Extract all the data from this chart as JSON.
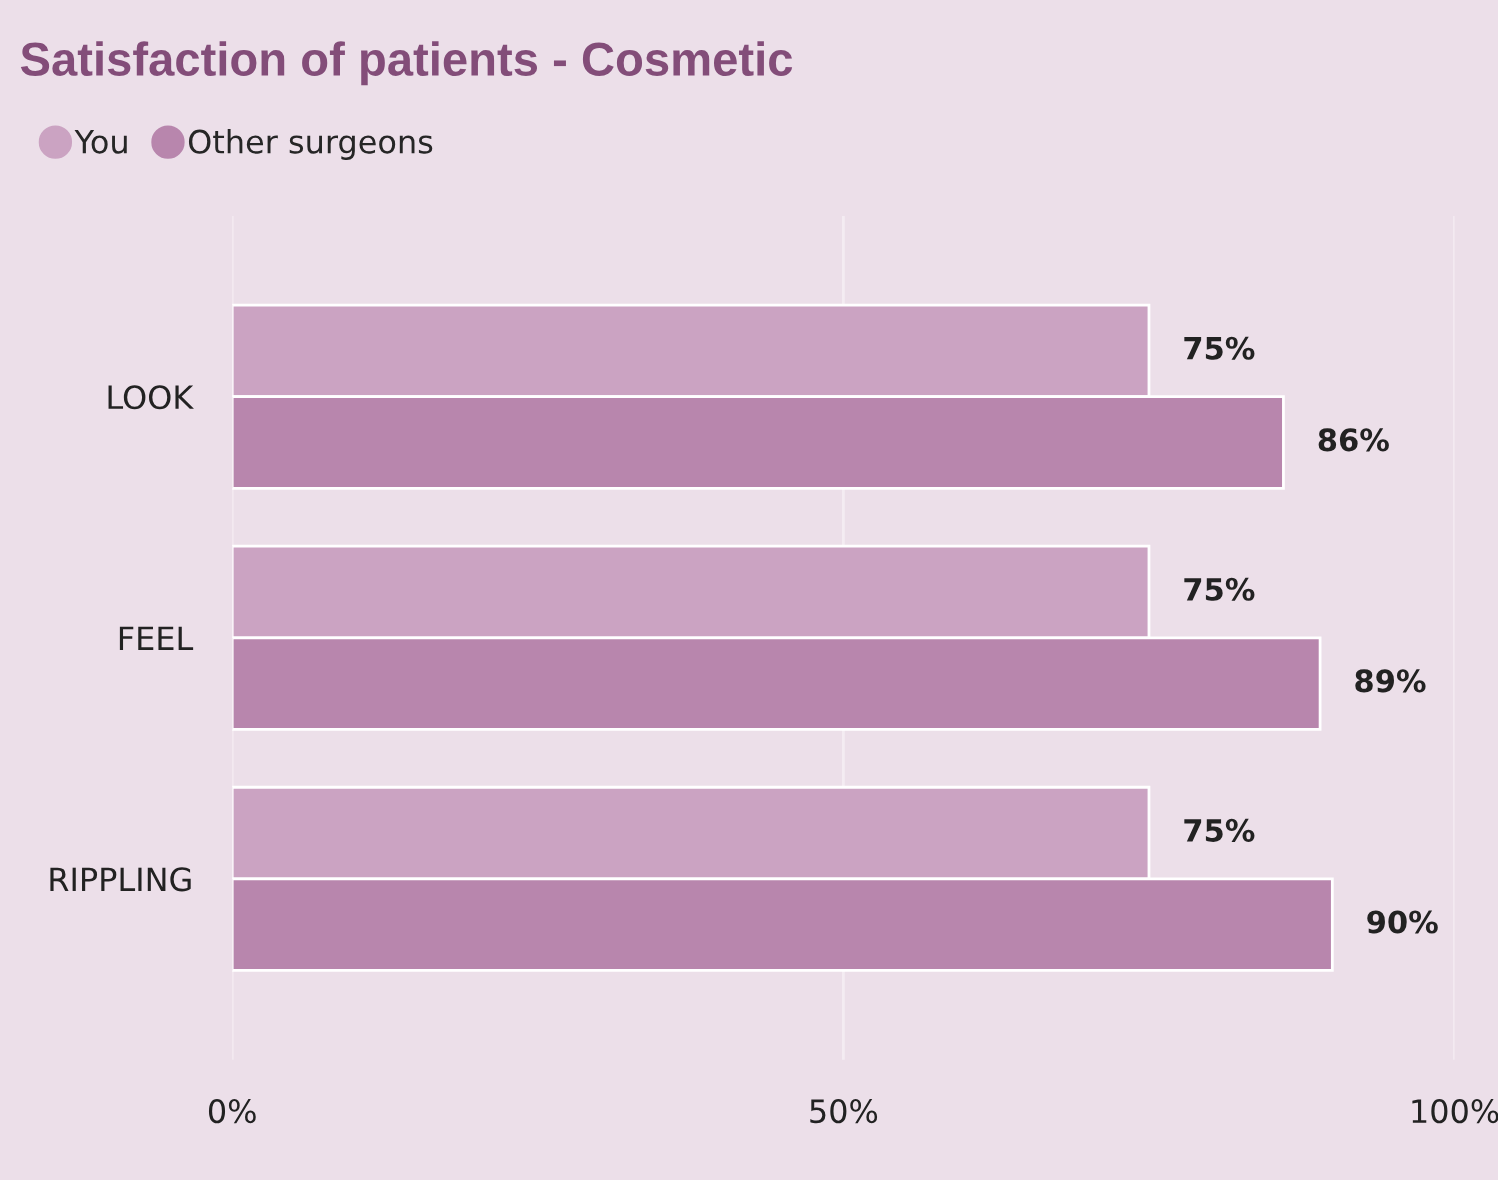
{
  "chart_data": {
    "type": "bar",
    "orientation": "horizontal",
    "title": "Satisfaction of patients - Cosmetic",
    "categories": [
      "LOOK",
      "FEEL",
      "RIPPLING"
    ],
    "series": [
      {
        "name": "You",
        "color": "#cba3c2",
        "values": [
          75,
          75,
          75
        ],
        "value_labels": [
          "75%",
          "75%",
          "75%"
        ]
      },
      {
        "name": "Other surgeons",
        "color": "#b886ad",
        "values": [
          86,
          89,
          90
        ],
        "value_labels": [
          "86%",
          "89%",
          "90%"
        ]
      }
    ],
    "xlim": [
      0,
      100
    ],
    "xticks": [
      {
        "value": 0,
        "label": "0%"
      },
      {
        "value": 50,
        "label": "50%"
      },
      {
        "value": 100,
        "label": "100%"
      }
    ],
    "grid": "x",
    "legend": "top left"
  }
}
